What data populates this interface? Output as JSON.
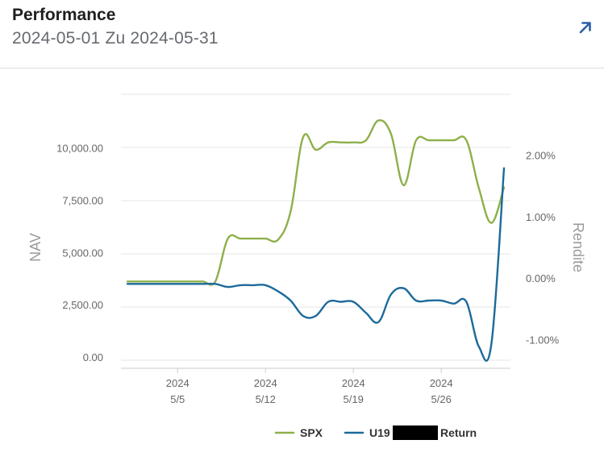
{
  "header": {
    "title": "Performance",
    "subtitle": "2024-05-01 Zu 2024-05-31",
    "expand_icon": "arrow-up-right-icon"
  },
  "colors": {
    "spx": "#8db04a",
    "account": "#1d6a9a",
    "grid": "#e6e6e6",
    "axis_text": "#666666"
  },
  "chart_data": {
    "type": "line",
    "y_left": {
      "label": "NAV",
      "ticks": [
        "10,000.00",
        "7,500.00",
        "5,000.00",
        "2,500.00",
        "0.00"
      ],
      "tick_values": [
        10000,
        7500,
        5000,
        2500,
        0
      ],
      "range": [
        -500,
        12600
      ]
    },
    "y_right": {
      "label": "Rendite",
      "ticks": [
        "2.00%",
        "1.00%",
        "0.00%",
        "-1.00%"
      ],
      "tick_values": [
        2.0,
        1.0,
        0.0,
        -1.0
      ],
      "range": [
        -1.45,
        3.0
      ]
    },
    "x_axis": {
      "range": [
        "2024-05-01",
        "2024-05-31"
      ],
      "ticks": [
        {
          "line1": "2024",
          "line2": "5/5",
          "date": "2024-05-05"
        },
        {
          "line1": "2024",
          "line2": "5/12",
          "date": "2024-05-12"
        },
        {
          "line1": "2024",
          "line2": "5/19",
          "date": "2024-05-19"
        },
        {
          "line1": "2024",
          "line2": "5/26",
          "date": "2024-05-26"
        }
      ]
    },
    "series": [
      {
        "name": "SPX",
        "axis": "left",
        "points": [
          [
            "2024-05-01",
            3650
          ],
          [
            "2024-05-02",
            3650
          ],
          [
            "2024-05-03",
            3650
          ],
          [
            "2024-05-04",
            3650
          ],
          [
            "2024-05-05",
            3650
          ],
          [
            "2024-05-06",
            3650
          ],
          [
            "2024-05-07",
            3650
          ],
          [
            "2024-05-08",
            3650
          ],
          [
            "2024-05-09",
            5700
          ],
          [
            "2024-05-10",
            5700
          ],
          [
            "2024-05-11",
            5700
          ],
          [
            "2024-05-12",
            5700
          ],
          [
            "2024-05-13",
            5650
          ],
          [
            "2024-05-14",
            7000
          ],
          [
            "2024-05-15",
            10550
          ],
          [
            "2024-05-16",
            9950
          ],
          [
            "2024-05-17",
            10300
          ],
          [
            "2024-05-18",
            10300
          ],
          [
            "2024-05-19",
            10300
          ],
          [
            "2024-05-20",
            10400
          ],
          [
            "2024-05-21",
            11350
          ],
          [
            "2024-05-22",
            10700
          ],
          [
            "2024-05-23",
            8250
          ],
          [
            "2024-05-24",
            10400
          ],
          [
            "2024-05-25",
            10400
          ],
          [
            "2024-05-26",
            10400
          ],
          [
            "2024-05-27",
            10400
          ],
          [
            "2024-05-28",
            10400
          ],
          [
            "2024-05-29",
            8100
          ],
          [
            "2024-05-30",
            6450
          ],
          [
            "2024-05-31",
            8150
          ]
        ]
      },
      {
        "name": "U19██████ Return",
        "axis": "right",
        "points": [
          [
            "2024-05-01",
            -0.08
          ],
          [
            "2024-05-02",
            -0.08
          ],
          [
            "2024-05-03",
            -0.08
          ],
          [
            "2024-05-04",
            -0.08
          ],
          [
            "2024-05-05",
            -0.08
          ],
          [
            "2024-05-06",
            -0.08
          ],
          [
            "2024-05-07",
            -0.08
          ],
          [
            "2024-05-08",
            -0.08
          ],
          [
            "2024-05-09",
            -0.13
          ],
          [
            "2024-05-10",
            -0.1
          ],
          [
            "2024-05-11",
            -0.1
          ],
          [
            "2024-05-12",
            -0.1
          ],
          [
            "2024-05-13",
            -0.2
          ],
          [
            "2024-05-14",
            -0.35
          ],
          [
            "2024-05-15",
            -0.6
          ],
          [
            "2024-05-16",
            -0.6
          ],
          [
            "2024-05-17",
            -0.37
          ],
          [
            "2024-05-18",
            -0.37
          ],
          [
            "2024-05-19",
            -0.37
          ],
          [
            "2024-05-20",
            -0.55
          ],
          [
            "2024-05-21",
            -0.7
          ],
          [
            "2024-05-22",
            -0.25
          ],
          [
            "2024-05-23",
            -0.15
          ],
          [
            "2024-05-24",
            -0.35
          ],
          [
            "2024-05-25",
            -0.35
          ],
          [
            "2024-05-26",
            -0.35
          ],
          [
            "2024-05-27",
            -0.4
          ],
          [
            "2024-05-28",
            -0.37
          ],
          [
            "2024-05-29",
            -1.1
          ],
          [
            "2024-05-30",
            -1.05
          ],
          [
            "2024-05-31",
            1.8
          ]
        ]
      }
    ],
    "legend": {
      "placement": "bottom-right",
      "items": [
        {
          "label": "SPX"
        },
        {
          "label": "U19",
          "redacted": true,
          "suffix": "Return"
        }
      ]
    },
    "grid": true
  }
}
